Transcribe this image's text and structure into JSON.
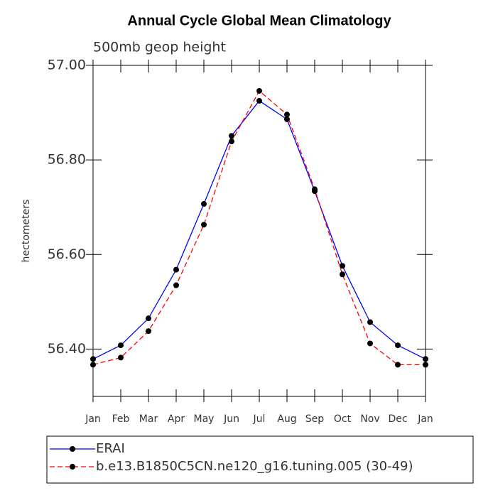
{
  "chart_data": {
    "type": "line",
    "title": "Annual Cycle Global Mean Climatology",
    "subtitle": "500mb geop height",
    "y_label": "hectometers",
    "categories": [
      "Jan",
      "Feb",
      "Mar",
      "Apr",
      "May",
      "Jun",
      "Jul",
      "Aug",
      "Sep",
      "Oct",
      "Nov",
      "Dec",
      "Jan"
    ],
    "series": [
      {
        "name": "ERAI",
        "color": "#0000ff",
        "dash": false,
        "values": [
          56.379,
          56.408,
          56.465,
          56.568,
          56.707,
          56.851,
          56.925,
          56.886,
          56.734,
          56.576,
          56.457,
          56.408,
          56.379
        ]
      },
      {
        "name": "b.e13.B1850C5CN.ne120_g16.tuning.005 (30-49)",
        "color": "#ff0000",
        "dash": true,
        "values": [
          56.367,
          56.382,
          56.438,
          56.535,
          56.663,
          56.839,
          56.946,
          56.896,
          56.738,
          56.558,
          56.412,
          56.367,
          56.367
        ]
      }
    ],
    "ylim": [
      56.3,
      57.0
    ],
    "yticks": [
      {
        "value": 56.4,
        "label": "56.40"
      },
      {
        "value": 56.6,
        "label": "56.60"
      },
      {
        "value": 56.8,
        "label": "56.80"
      },
      {
        "value": 57.0,
        "label": "57.00"
      }
    ],
    "grid": false,
    "legend": "bottom"
  }
}
